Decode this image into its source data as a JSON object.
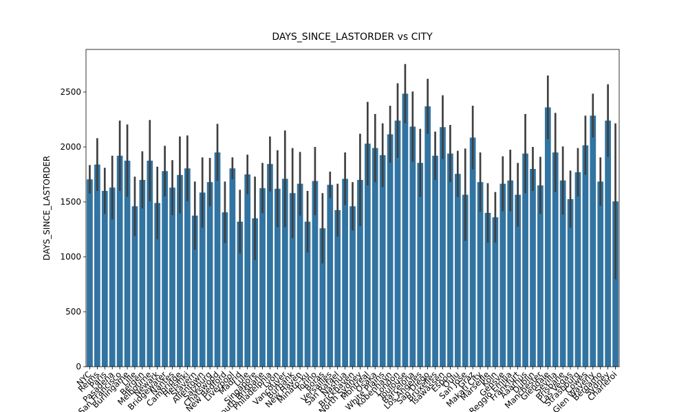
{
  "chart_data": {
    "type": "bar",
    "title": "DAYS_SINCE_LASTORDER vs CITY",
    "ylabel": "DAYS_SINCE_LASTORDER",
    "color": "#3274a1",
    "error_color": "#3f3f3f",
    "categories": [
      "NYC",
      "Reims",
      "Paris",
      "Pasadena",
      "San Francisco",
      "Burlingame",
      "Lille",
      "Bergen",
      "Melbourne",
      "Newark",
      "Bridgewater",
      "Nantes",
      "Cambridge",
      "Helsinki",
      "Stavern",
      "Allentown",
      "Salzburg",
      "Chatswood",
      "New Bedford",
      "Liverpool",
      "Madrid",
      "Lule",
      "Singapore",
      "South Brisbane",
      "Philadelphia",
      "Lyon",
      "Vancouver",
      "Burbank",
      "New Haven",
      "Minato-ku",
      "Torino",
      "Boras",
      "Versailles",
      "San Rafael",
      "Nashua",
      "Brickhaven",
      "North Sydney",
      "Montreal",
      "Osaka",
      "White Plains",
      "Kobenhavn",
      "London",
      "Toulouse",
      "Barcelona",
      "Los Angeles",
      "San Diego",
      "Bruxelles",
      "Tsawassen",
      "Espoo",
      "Oulu",
      "San Jose",
      "Graz",
      "Makati City",
      "Marseille",
      "Koln",
      "Gensve",
      "Reggio Emilia",
      "Frankfurt",
      "Aaarhus",
      "Dublin",
      "Manchester",
      "Glendale",
      "Sevilla",
      "Brisbane",
      "Las Vegas",
      "Strasbourg",
      "Cowes",
      "Glen Waverly",
      "Bergamo",
      "Sydney",
      "Charleroi"
    ],
    "values": [
      1705,
      1840,
      1600,
      1630,
      1920,
      1875,
      1460,
      1700,
      1875,
      1490,
      1780,
      1630,
      1745,
      1805,
      1375,
      1585,
      1680,
      1950,
      1405,
      1805,
      1320,
      1750,
      1350,
      1625,
      1845,
      1620,
      1710,
      1580,
      1665,
      1320,
      1690,
      1260,
      1655,
      1425,
      1710,
      1460,
      1700,
      2030,
      1990,
      1925,
      2115,
      2240,
      2485,
      2185,
      1855,
      2370,
      1920,
      2180,
      1940,
      1755,
      1565,
      2085,
      1680,
      1400,
      1360,
      1665,
      1695,
      1565,
      1940,
      1800,
      1650,
      2360,
      1950,
      1695,
      1525,
      1770,
      2015,
      2285,
      1685,
      2240,
      1505
    ],
    "errors": [
      130,
      240,
      210,
      290,
      320,
      330,
      270,
      260,
      370,
      330,
      230,
      250,
      350,
      300,
      310,
      320,
      220,
      260,
      280,
      100,
      290,
      180,
      380,
      230,
      250,
      350,
      440,
      410,
      290,
      280,
      310,
      320,
      120,
      240,
      240,
      220,
      420,
      380,
      310,
      290,
      260,
      340,
      270,
      320,
      310,
      250,
      220,
      290,
      260,
      210,
      420,
      290,
      270,
      270,
      230,
      250,
      280,
      290,
      360,
      200,
      260,
      290,
      360,
      310,
      260,
      220,
      270,
      200,
      220,
      330,
      710
    ],
    "ylim": [
      0,
      2887.5
    ],
    "yticks": [
      0,
      500,
      1000,
      1500,
      2000,
      2500
    ]
  }
}
